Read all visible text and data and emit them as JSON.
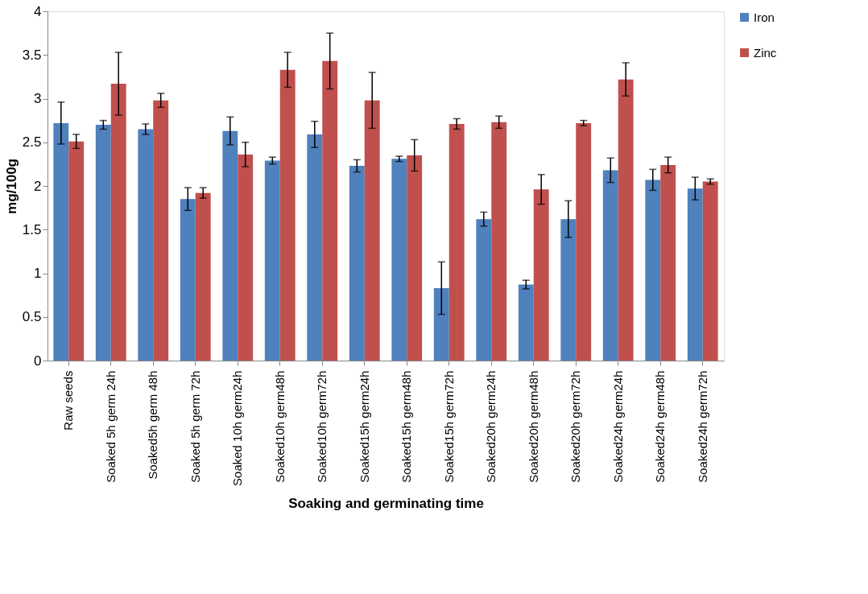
{
  "chart_data": {
    "type": "bar",
    "xlabel": "Soaking and germinating time",
    "ylabel": "mg/100g",
    "categories": [
      "Raw  seeds",
      "Soaked 5h germ 24h",
      "Soaked5h germ 48h",
      "Soaked 5h germ 72h",
      "Soaked 10h germ24h",
      "Soaked10h germ48h",
      "Soaked10h germ72h",
      "Soaked15h germ24h",
      "Soaked15h germ48h",
      "Soaked15h germ72h",
      "Soaked20h germ24h",
      "Soaked20h germ48h",
      "Soaked20h germ72h",
      "Soaked24h germ24h",
      "Soaked24h germ48h",
      "Soaked24h germ72h"
    ],
    "series": [
      {
        "name": "Iron",
        "color": "#4f81bd",
        "values": [
          2.72,
          2.7,
          2.65,
          1.85,
          2.63,
          2.29,
          2.59,
          2.23,
          2.31,
          0.83,
          1.62,
          0.87,
          1.62,
          2.18,
          2.07,
          1.97
        ],
        "errors": [
          0.24,
          0.05,
          0.06,
          0.13,
          0.16,
          0.04,
          0.15,
          0.07,
          0.03,
          0.3,
          0.08,
          0.05,
          0.21,
          0.14,
          0.12,
          0.13
        ]
      },
      {
        "name": "Zinc",
        "color": "#c0504d",
        "values": [
          2.51,
          3.17,
          2.98,
          1.92,
          2.36,
          3.33,
          3.43,
          2.98,
          2.35,
          2.71,
          2.73,
          1.96,
          2.72,
          3.22,
          2.24,
          2.05
        ],
        "errors": [
          0.08,
          0.36,
          0.08,
          0.06,
          0.14,
          0.2,
          0.32,
          0.32,
          0.18,
          0.06,
          0.07,
          0.17,
          0.03,
          0.19,
          0.09,
          0.03
        ]
      }
    ],
    "ylim": [
      0,
      4
    ],
    "yticks": [
      0,
      0.5,
      1,
      1.5,
      2,
      2.5,
      3,
      3.5,
      4
    ],
    "grid": false,
    "legend": "right"
  }
}
